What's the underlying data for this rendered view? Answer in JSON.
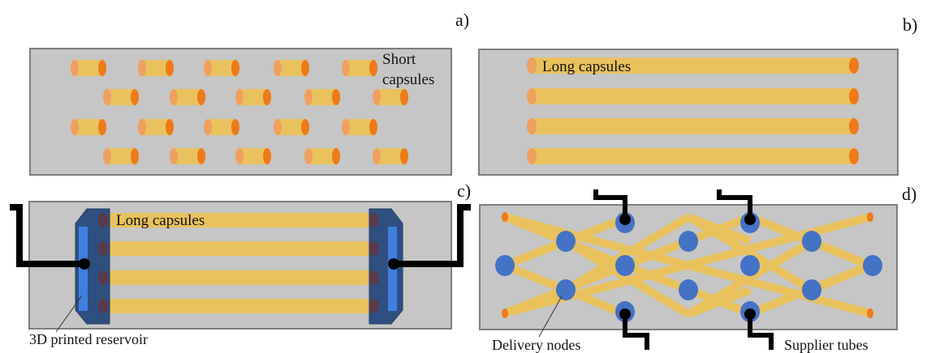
{
  "panels": {
    "a": {
      "letter": "a)",
      "label_line1": "Short",
      "label_line2": "capsules"
    },
    "b": {
      "letter": "b)",
      "label": "Long capsules"
    },
    "c": {
      "letter": "c)",
      "label": "Long capsules",
      "reservoir_label": "3D printed reservoir"
    },
    "d": {
      "letter": "d)",
      "nodes_label": "Delivery nodes",
      "tubes_label": "Supplier tubes"
    }
  },
  "colors": {
    "panel_fill": "#c6c6c6",
    "panel_stroke": "#7d7d7d",
    "capsule_body": "#e9c25e",
    "capsule_cap": "#ee7a18",
    "capsule_tail": "#efa060",
    "node": "#4472c4",
    "reservoir_frame": "#2f4f80",
    "reservoir_inner": "#3f7fe0",
    "tube": "#000000"
  }
}
